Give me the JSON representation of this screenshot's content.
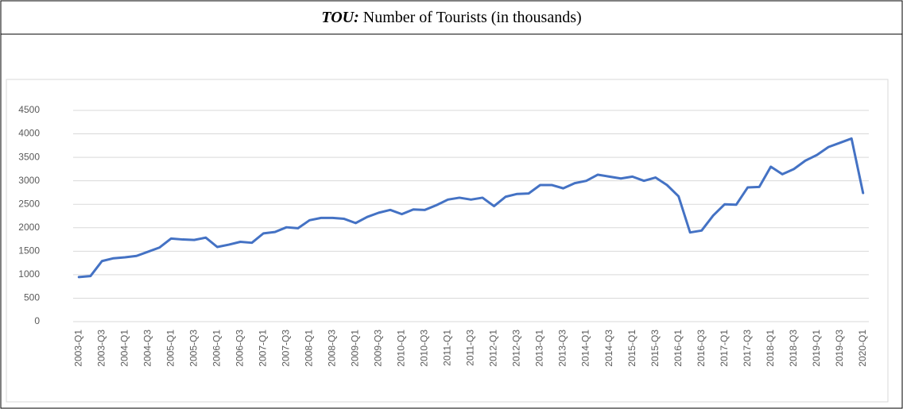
{
  "chart_data": {
    "type": "line",
    "title_emphasis": "TOU:",
    "title": "Number of Tourists (in thousands)",
    "categories": [
      "2003-Q1",
      null,
      "2003-Q3",
      null,
      "2004-Q1",
      null,
      "2004-Q3",
      null,
      "2005-Q1",
      null,
      "2005-Q3",
      null,
      "2006-Q1",
      null,
      "2006-Q3",
      null,
      "2007-Q1",
      null,
      "2007-Q3",
      null,
      "2008-Q1",
      null,
      "2008-Q3",
      null,
      "2009-Q1",
      null,
      "2009-Q3",
      null,
      "2010-Q1",
      null,
      "2010-Q3",
      null,
      "2011-Q1",
      null,
      "2011-Q3",
      null,
      "2012-Q1",
      null,
      "2012-Q3",
      null,
      "2013-Q1",
      null,
      "2013-Q3",
      null,
      "2014-Q1",
      null,
      "2014-Q3",
      null,
      "2015-Q1",
      null,
      "2015-Q3",
      null,
      "2016-Q1",
      null,
      "2016-Q3",
      null,
      "2017-Q1",
      null,
      "2017-Q3",
      null,
      "2018-Q1",
      null,
      "2018-Q3",
      null,
      "2019-Q1",
      null,
      "2019-Q3",
      null,
      "2020-Q1"
    ],
    "values": [
      950,
      970,
      1290,
      1350,
      1370,
      1400,
      1490,
      1580,
      1770,
      1750,
      1740,
      1790,
      1590,
      1640,
      1700,
      1680,
      1880,
      1910,
      2010,
      1990,
      2160,
      2210,
      2210,
      2190,
      2100,
      2230,
      2320,
      2380,
      2290,
      2390,
      2380,
      2480,
      2600,
      2640,
      2600,
      2640,
      2460,
      2660,
      2720,
      2730,
      2910,
      2910,
      2840,
      2950,
      3000,
      3130,
      3090,
      3050,
      3090,
      3000,
      3070,
      2910,
      2670,
      1900,
      1940,
      2260,
      2500,
      2490,
      2860,
      2870,
      3300,
      3140,
      3250,
      3430,
      3550,
      3720,
      3810,
      3900,
      2740
    ],
    "color": "#4472c4",
    "ylim": [
      0,
      4500
    ],
    "yticks": [
      0,
      500,
      1000,
      1500,
      2000,
      2500,
      3000,
      3500,
      4000,
      4500
    ],
    "grid": true
  }
}
